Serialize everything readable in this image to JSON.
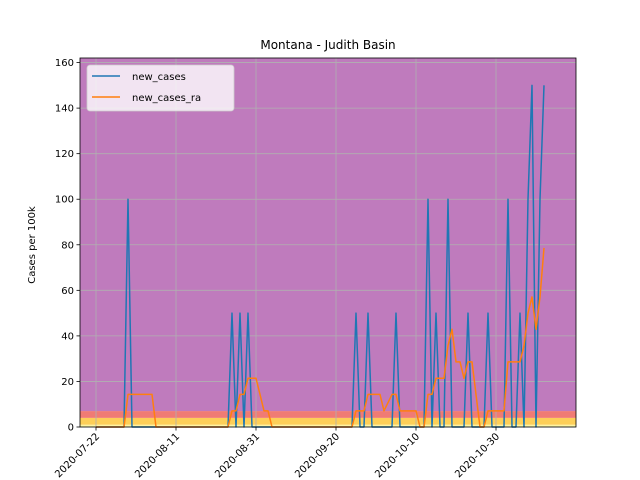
{
  "chart_data": {
    "type": "line",
    "title": "Montana - Judith Basin",
    "xlabel": "",
    "ylabel": "Cases per 100k",
    "ylim": [
      0,
      162
    ],
    "xlim": [
      "2020-07-18",
      "2020-11-19"
    ],
    "grid": true,
    "legend_position": "top-left",
    "x_ticks": [
      "2020-07-22",
      "2020-08-11",
      "2020-08-31",
      "2020-09-20",
      "2020-10-10",
      "2020-10-30"
    ],
    "y_ticks": [
      0,
      20,
      40,
      60,
      80,
      100,
      120,
      140,
      160
    ],
    "background_bands": [
      {
        "from": 0,
        "to": 1,
        "color": "#fef5a0"
      },
      {
        "from": 1,
        "to": 4,
        "color": "#fdcf58"
      },
      {
        "from": 4,
        "to": 7,
        "color": "#f07b74"
      },
      {
        "from": 7,
        "to": 162,
        "color": "#bf7bbd"
      }
    ],
    "series": [
      {
        "name": "new_cases",
        "color": "#1f77b4",
        "points": [
          [
            "2020-07-22",
            0
          ],
          [
            "2020-07-29",
            0
          ],
          [
            "2020-07-30",
            100
          ],
          [
            "2020-07-31",
            0
          ],
          [
            "2020-08-24",
            0
          ],
          [
            "2020-08-25",
            50
          ],
          [
            "2020-08-26",
            0
          ],
          [
            "2020-08-27",
            50
          ],
          [
            "2020-08-28",
            0
          ],
          [
            "2020-08-29",
            50
          ],
          [
            "2020-08-30",
            0
          ],
          [
            "2020-09-24",
            0
          ],
          [
            "2020-09-25",
            50
          ],
          [
            "2020-09-26",
            0
          ],
          [
            "2020-09-27",
            0
          ],
          [
            "2020-09-28",
            50
          ],
          [
            "2020-09-29",
            0
          ],
          [
            "2020-10-04",
            0
          ],
          [
            "2020-10-05",
            50
          ],
          [
            "2020-10-06",
            0
          ],
          [
            "2020-10-12",
            0
          ],
          [
            "2020-10-13",
            100
          ],
          [
            "2020-10-14",
            0
          ],
          [
            "2020-10-15",
            50
          ],
          [
            "2020-10-16",
            0
          ],
          [
            "2020-10-17",
            0
          ],
          [
            "2020-10-18",
            100
          ],
          [
            "2020-10-19",
            0
          ],
          [
            "2020-10-22",
            0
          ],
          [
            "2020-10-23",
            50
          ],
          [
            "2020-10-24",
            0
          ],
          [
            "2020-10-27",
            0
          ],
          [
            "2020-10-28",
            50
          ],
          [
            "2020-10-29",
            0
          ],
          [
            "2020-11-01",
            0
          ],
          [
            "2020-11-02",
            100
          ],
          [
            "2020-11-03",
            0
          ],
          [
            "2020-11-04",
            0
          ],
          [
            "2020-11-05",
            50
          ],
          [
            "2020-11-06",
            0
          ],
          [
            "2020-11-07",
            100
          ],
          [
            "2020-11-08",
            150
          ],
          [
            "2020-11-09",
            0
          ],
          [
            "2020-11-10",
            100
          ],
          [
            "2020-11-11",
            150
          ]
        ]
      },
      {
        "name": "new_cases_ra",
        "color": "#ff7f0e",
        "points": [
          [
            "2020-07-22",
            0
          ],
          [
            "2020-07-29",
            0
          ],
          [
            "2020-07-30",
            14.3
          ],
          [
            "2020-08-05",
            14.3
          ],
          [
            "2020-08-06",
            0
          ],
          [
            "2020-08-24",
            0
          ],
          [
            "2020-08-25",
            7.1
          ],
          [
            "2020-08-26",
            7.1
          ],
          [
            "2020-08-27",
            14.3
          ],
          [
            "2020-08-28",
            14.3
          ],
          [
            "2020-08-29",
            21.4
          ],
          [
            "2020-08-31",
            21.4
          ],
          [
            "2020-09-01",
            14.3
          ],
          [
            "2020-09-02",
            7.1
          ],
          [
            "2020-09-03",
            7.1
          ],
          [
            "2020-09-04",
            0
          ],
          [
            "2020-09-24",
            0
          ],
          [
            "2020-09-25",
            7.1
          ],
          [
            "2020-09-27",
            7.1
          ],
          [
            "2020-09-28",
            14.3
          ],
          [
            "2020-10-01",
            14.3
          ],
          [
            "2020-10-02",
            7.1
          ],
          [
            "2020-10-04",
            14.3
          ],
          [
            "2020-10-05",
            14.3
          ],
          [
            "2020-10-06",
            7.1
          ],
          [
            "2020-10-10",
            7.1
          ],
          [
            "2020-10-11",
            0
          ],
          [
            "2020-10-12",
            0
          ],
          [
            "2020-10-13",
            14.3
          ],
          [
            "2020-10-14",
            14.3
          ],
          [
            "2020-10-15",
            21.4
          ],
          [
            "2020-10-17",
            21.4
          ],
          [
            "2020-10-18",
            35.7
          ],
          [
            "2020-10-19",
            42.9
          ],
          [
            "2020-10-20",
            28.6
          ],
          [
            "2020-10-21",
            28.6
          ],
          [
            "2020-10-22",
            21.4
          ],
          [
            "2020-10-23",
            28.6
          ],
          [
            "2020-10-24",
            28.6
          ],
          [
            "2020-10-25",
            14.3
          ],
          [
            "2020-10-26",
            0
          ],
          [
            "2020-10-27",
            0
          ],
          [
            "2020-10-28",
            7.1
          ],
          [
            "2020-11-01",
            7.1
          ],
          [
            "2020-11-02",
            28.6
          ],
          [
            "2020-11-05",
            28.6
          ],
          [
            "2020-11-06",
            35.7
          ],
          [
            "2020-11-07",
            50
          ],
          [
            "2020-11-08",
            57.1
          ],
          [
            "2020-11-09",
            42.9
          ],
          [
            "2020-11-10",
            57.1
          ],
          [
            "2020-11-11",
            78.6
          ]
        ]
      }
    ]
  }
}
